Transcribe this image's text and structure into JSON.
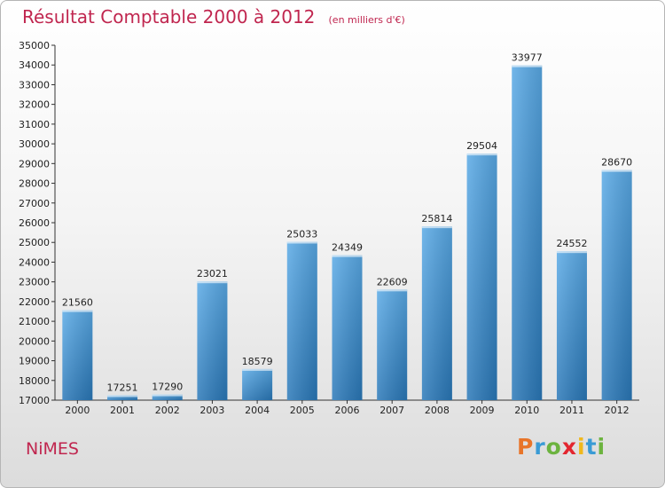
{
  "chart_data": {
    "type": "bar",
    "title": "Résultat Comptable 2000 à 2012",
    "subtitle": "(en milliers d'€)",
    "categories": [
      "2000",
      "2001",
      "2002",
      "2003",
      "2004",
      "2005",
      "2006",
      "2007",
      "2008",
      "2009",
      "2010",
      "2011",
      "2012"
    ],
    "values": [
      21560,
      17251,
      17290,
      23021,
      18579,
      25033,
      24349,
      22609,
      25814,
      29504,
      33977,
      24552,
      28670
    ],
    "ylim": [
      17000,
      35000
    ],
    "ytick_step": 1000,
    "xlabel": "",
    "ylabel": "",
    "grid": false,
    "bar_color_top": "#5aaae6",
    "bar_color_bottom": "#2a78b8"
  },
  "footer": {
    "city": "NiMES",
    "brand_letters": [
      "P",
      "r",
      "o",
      "x",
      "i",
      "t",
      "i"
    ],
    "brand_colors": [
      "#e8752a",
      "#3a9bd5",
      "#6cb33f",
      "#e3262f",
      "#f0b81c",
      "#3a9bd5",
      "#6cb33f"
    ]
  },
  "colors": {
    "title": "#c0264f",
    "axis": "#333333"
  }
}
